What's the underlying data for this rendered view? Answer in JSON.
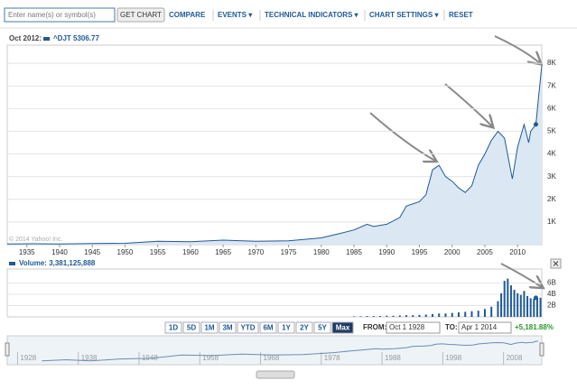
{
  "toolbar": {
    "search_placeholder": "Enter name(s) or symbol(s)",
    "button": "GET CHART",
    "items": [
      "COMPARE",
      "EVENTS ▾",
      "TECHNICAL INDICATORS ▾",
      "CHART SETTINGS ▾",
      "RESET"
    ]
  },
  "chart_data": [
    {
      "type": "area",
      "date_label": "Oct 2012:",
      "watermark": "© 2014 Yahoo! Inc.",
      "x": [
        1932,
        1936,
        1940,
        1945,
        1950,
        1955,
        1960,
        1965,
        1970,
        1975,
        1980,
        1983,
        1985,
        1987,
        1988,
        1990,
        1992,
        1993,
        1995,
        1996,
        1997,
        1998,
        1999,
        2000,
        2001,
        2002,
        2003,
        2004,
        2005,
        2006,
        2007,
        2008,
        2008.8,
        2009.2,
        2010,
        2011,
        2011.7,
        2012,
        2012.8,
        2013.2,
        2013.7
      ],
      "series": [
        {
          "name": "^DJT 5306.77",
          "color": "#1f5a96",
          "values": [
            30,
            40,
            30,
            50,
            60,
            150,
            130,
            200,
            150,
            170,
            300,
            500,
            650,
            900,
            800,
            900,
            1200,
            1700,
            1900,
            2200,
            3300,
            3500,
            3000,
            2800,
            2500,
            2300,
            2600,
            3500,
            4000,
            4600,
            5000,
            4700,
            3500,
            2900,
            4300,
            5300,
            4500,
            5000,
            5306.77,
            6500,
            7900
          ]
        }
      ],
      "marker": {
        "x": 2012.8,
        "y": 5306.77
      },
      "xlim": [
        1932,
        2013.7
      ],
      "xticks": [
        1935,
        1940,
        1945,
        1950,
        1955,
        1960,
        1965,
        1970,
        1975,
        1980,
        1985,
        1990,
        1995,
        2000,
        2005,
        2010
      ],
      "ylim": [
        0,
        8800
      ],
      "yticks": [
        {
          "value": 1000,
          "label": "1K"
        },
        {
          "value": 2000,
          "label": "2K"
        },
        {
          "value": 3000,
          "label": "3K"
        },
        {
          "value": 4000,
          "label": "4K"
        },
        {
          "value": 5000,
          "label": "5K"
        },
        {
          "value": 6000,
          "label": "6K"
        },
        {
          "value": 7000,
          "label": "7K"
        },
        {
          "value": 8000,
          "label": "8K"
        }
      ],
      "grid": true
    },
    {
      "type": "bar",
      "title": "Volume: 3,381,125,888",
      "x": [
        1985,
        1986,
        1987,
        1988,
        1989,
        1990,
        1991,
        1992,
        1993,
        1994,
        1995,
        1996,
        1997,
        1998,
        1999,
        2000,
        2001,
        2002,
        2003,
        2004,
        2005,
        2006,
        2007,
        2007.5,
        2008,
        2008.5,
        2009,
        2009.5,
        2010,
        2010.5,
        2011,
        2011.5,
        2012,
        2012.5,
        2013,
        2013.5
      ],
      "series": [
        {
          "name": "Volume",
          "color": "#1f5a96",
          "values": [
            0.1,
            0.1,
            0.15,
            0.15,
            0.15,
            0.2,
            0.2,
            0.25,
            0.3,
            0.3,
            0.35,
            0.4,
            0.5,
            0.6,
            0.6,
            0.7,
            0.8,
            0.9,
            1.0,
            1.1,
            1.4,
            1.8,
            2.8,
            4.2,
            6.4,
            6.8,
            5.6,
            4.8,
            4.2,
            3.9,
            4.6,
            3.7,
            3.3,
            3.2,
            3.4,
            3.4
          ]
        }
      ],
      "marker": {
        "x": 2012.8,
        "y": 3.381125888
      },
      "xlim": [
        1932,
        2013.7
      ],
      "ylim": [
        0,
        8.5
      ],
      "yticks": [
        {
          "value": 2,
          "label": "2B"
        },
        {
          "value": 4,
          "label": "4B"
        },
        {
          "value": 6,
          "label": "6B"
        }
      ],
      "grid": true
    },
    {
      "type": "navigator",
      "log_scale": true,
      "ylim": [
        10,
        20000
      ],
      "xlim": [
        1926.3,
        2014.3
      ],
      "xticks": [
        1928,
        1938,
        1948,
        1958,
        1968,
        1978,
        1988,
        1998,
        2008
      ]
    }
  ],
  "controls": {
    "ranges": [
      "1D",
      "5D",
      "1M",
      "3M",
      "YTD",
      "6M",
      "1Y",
      "2Y",
      "5Y",
      "Max"
    ],
    "active": 9,
    "from_label": "FROM:",
    "from": "Oct 1 1928",
    "to_label": "TO:",
    "to": "Apr 1 2014",
    "change": "+5,181.88%"
  }
}
